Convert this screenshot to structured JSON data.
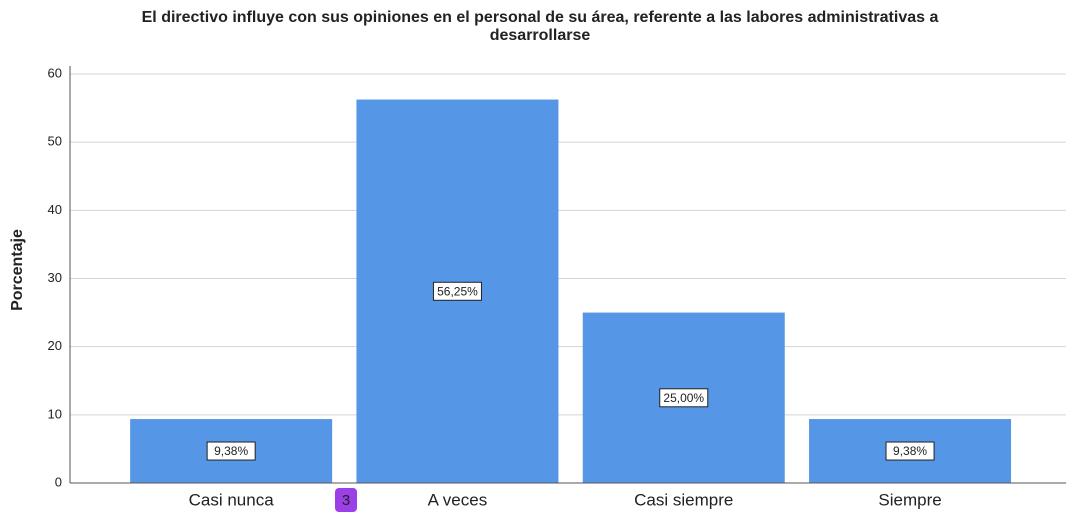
{
  "chart_data": {
    "type": "bar",
    "title": "El directivo influye con sus opiniones en el personal de su área, referente a las labores administrativas a",
    "title_line2": "desarrollarse",
    "y_label": "Porcentaje",
    "categories": [
      "Casi nunca",
      "A veces",
      "Casi siempre",
      "Siempre"
    ],
    "values": [
      9.38,
      56.25,
      25,
      9.38
    ],
    "value_labels": [
      "9,38%",
      "56,25%",
      "25,00%",
      "9,38%"
    ],
    "color": "#5596e6",
    "ylim": [
      0,
      60
    ],
    "yticks": [
      0,
      10,
      20,
      30,
      40,
      50,
      60
    ],
    "grid": true,
    "annotation": "3"
  }
}
